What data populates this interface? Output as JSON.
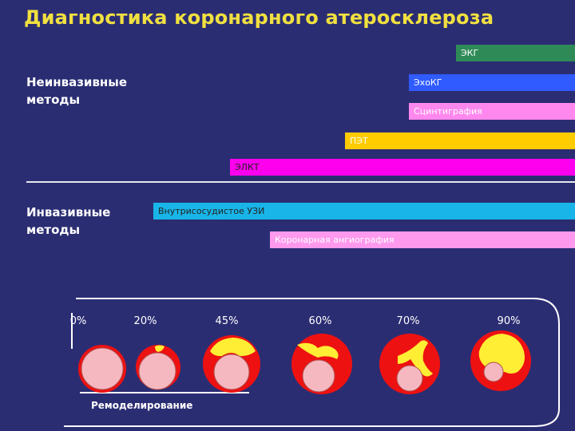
{
  "title": "Диагностика коронарного атеросклероза",
  "sections": {
    "noninvasive": "Неинвазивные\nметоды",
    "invasive": "Инвазивные\nметоды"
  },
  "methods": [
    {
      "label": "ЭКГ",
      "color": "#2e8b57",
      "text_color": "#ffffff"
    },
    {
      "label": "ЭхоКГ",
      "color": "#2f5bff",
      "text_color": "#ffffff"
    },
    {
      "label": "Сцинтиграфия",
      "color": "#ff88ee",
      "text_color": "#ffffff"
    },
    {
      "label": "ПЭТ",
      "color": "#ffcc00",
      "text_color": "#ffffff"
    },
    {
      "label": "ЭЛКТ",
      "color": "#ff00ee",
      "text_color": "#222222"
    },
    {
      "label": "Внутрисосудистое УЗИ",
      "color": "#19b5e8",
      "text_color": "#222222"
    },
    {
      "label": "Коронарная ангиография",
      "color": "#ff99ee",
      "text_color": "#ffffff"
    }
  ],
  "stenosis": {
    "percentages": [
      "0%",
      "20%",
      "45%",
      "60%",
      "70%",
      "90%"
    ],
    "remodeling_label": "Ремоделирование"
  },
  "colors": {
    "background": "#2b2d73",
    "title": "#f0e040",
    "vessel_wall": "#ee1111",
    "lumen": "#f5b8c0",
    "plaque": "#ffee33"
  }
}
